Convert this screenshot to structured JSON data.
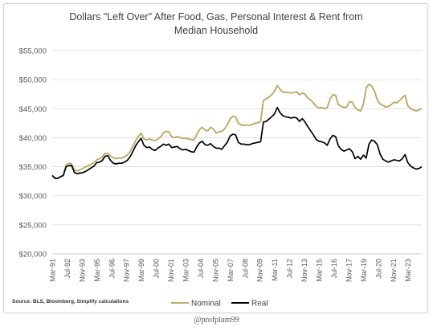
{
  "chart_data": {
    "type": "line",
    "title": [
      "Dollars \"Left Over\" After Food, Gas, Personal Interest & Rent from",
      "Median Household"
    ],
    "xlabel": "",
    "ylabel": "",
    "ylim": [
      20000,
      55000
    ],
    "yticks": [
      20000,
      25000,
      30000,
      35000,
      40000,
      45000,
      50000,
      55000
    ],
    "ytick_labels": [
      "$20,000",
      "$25,000",
      "$30,000",
      "$35,000",
      "$40,000",
      "$45,000",
      "$50,000",
      "$55,000"
    ],
    "x_range": [
      "1991-03",
      "2024-06"
    ],
    "xtick_labels": [
      "Mar-91",
      "Jul-92",
      "Nov-93",
      "Mar-95",
      "Jul-96",
      "Nov-97",
      "Mar-99",
      "Jul-00",
      "Nov-01",
      "Mar-03",
      "Jul-04",
      "Nov-05",
      "Mar-07",
      "Jul-08",
      "Nov-09",
      "Mar-11",
      "Jul-12",
      "Nov-13",
      "Mar-15",
      "Jul-16",
      "Nov-17",
      "Mar-19",
      "Jul-20",
      "Nov-21",
      "Mar-23"
    ],
    "grid": "horizontal",
    "legend": "bottom",
    "source": "Source: BLS, Bloomberg, Simplify calculations",
    "series": [
      {
        "name": "Nominal",
        "color": "#c2a866",
        "points": [
          [
            "1991-03",
            33500
          ],
          [
            "1991-06",
            33000
          ],
          [
            "1991-09",
            33000
          ],
          [
            "1991-12",
            33300
          ],
          [
            "1992-03",
            33500
          ],
          [
            "1992-06",
            35300
          ],
          [
            "1992-09",
            35600
          ],
          [
            "1992-12",
            35500
          ],
          [
            "1993-03",
            34400
          ],
          [
            "1993-06",
            34300
          ],
          [
            "1993-09",
            34500
          ],
          [
            "1993-12",
            34700
          ],
          [
            "1994-03",
            35000
          ],
          [
            "1994-06",
            35200
          ],
          [
            "1994-09",
            35400
          ],
          [
            "1994-12",
            35700
          ],
          [
            "1995-03",
            36200
          ],
          [
            "1995-06",
            36400
          ],
          [
            "1995-09",
            36700
          ],
          [
            "1995-12",
            37300
          ],
          [
            "1996-03",
            37300
          ],
          [
            "1996-06",
            36900
          ],
          [
            "1996-09",
            36500
          ],
          [
            "1996-12",
            36400
          ],
          [
            "1997-03",
            36500
          ],
          [
            "1997-06",
            36500
          ],
          [
            "1997-09",
            36700
          ],
          [
            "1997-12",
            37000
          ],
          [
            "1998-03",
            37600
          ],
          [
            "1998-06",
            38500
          ],
          [
            "1998-09",
            39500
          ],
          [
            "1998-12",
            40200
          ],
          [
            "1999-03",
            40800
          ],
          [
            "1999-06",
            39800
          ],
          [
            "1999-09",
            39600
          ],
          [
            "1999-12",
            39800
          ],
          [
            "2000-03",
            39600
          ],
          [
            "2000-06",
            39500
          ],
          [
            "2000-09",
            39800
          ],
          [
            "2000-12",
            40100
          ],
          [
            "2001-03",
            40800
          ],
          [
            "2001-06",
            41100
          ],
          [
            "2001-09",
            41000
          ],
          [
            "2001-12",
            40200
          ],
          [
            "2002-03",
            40000
          ],
          [
            "2002-06",
            40200
          ],
          [
            "2002-09",
            40000
          ],
          [
            "2002-12",
            39900
          ],
          [
            "2003-03",
            39900
          ],
          [
            "2003-06",
            39800
          ],
          [
            "2003-09",
            39700
          ],
          [
            "2003-12",
            39600
          ],
          [
            "2004-03",
            40500
          ],
          [
            "2004-06",
            41400
          ],
          [
            "2004-09",
            41800
          ],
          [
            "2004-12",
            41300
          ],
          [
            "2005-03",
            41200
          ],
          [
            "2005-06",
            41800
          ],
          [
            "2005-09",
            41500
          ],
          [
            "2005-12",
            40800
          ],
          [
            "2006-03",
            41000
          ],
          [
            "2006-06",
            41100
          ],
          [
            "2006-09",
            41500
          ],
          [
            "2006-12",
            42200
          ],
          [
            "2007-03",
            43200
          ],
          [
            "2007-06",
            43700
          ],
          [
            "2007-09",
            43600
          ],
          [
            "2007-12",
            42500
          ],
          [
            "2008-03",
            42200
          ],
          [
            "2008-06",
            42100
          ],
          [
            "2008-09",
            42200
          ],
          [
            "2008-12",
            42100
          ],
          [
            "2009-03",
            42300
          ],
          [
            "2009-06",
            42500
          ],
          [
            "2009-09",
            42600
          ],
          [
            "2009-12",
            42800
          ],
          [
            "2010-03",
            46400
          ],
          [
            "2010-06",
            46700
          ],
          [
            "2010-09",
            47000
          ],
          [
            "2010-12",
            47400
          ],
          [
            "2011-03",
            48000
          ],
          [
            "2011-06",
            49000
          ],
          [
            "2011-09",
            48300
          ],
          [
            "2011-12",
            47900
          ],
          [
            "2012-03",
            47800
          ],
          [
            "2012-06",
            47800
          ],
          [
            "2012-09",
            47700
          ],
          [
            "2012-12",
            47800
          ],
          [
            "2013-03",
            47900
          ],
          [
            "2013-06",
            47400
          ],
          [
            "2013-09",
            47700
          ],
          [
            "2013-12",
            47500
          ],
          [
            "2014-03",
            46800
          ],
          [
            "2014-06",
            46500
          ],
          [
            "2014-09",
            46000
          ],
          [
            "2014-12",
            45400
          ],
          [
            "2015-03",
            45100
          ],
          [
            "2015-06",
            45200
          ],
          [
            "2015-09",
            45000
          ],
          [
            "2015-12",
            45200
          ],
          [
            "2016-03",
            46700
          ],
          [
            "2016-06",
            47400
          ],
          [
            "2016-09",
            47300
          ],
          [
            "2016-12",
            45700
          ],
          [
            "2017-03",
            45400
          ],
          [
            "2017-06",
            45200
          ],
          [
            "2017-09",
            45300
          ],
          [
            "2017-12",
            46200
          ],
          [
            "2018-03",
            46100
          ],
          [
            "2018-06",
            45200
          ],
          [
            "2018-09",
            44800
          ],
          [
            "2018-12",
            44600
          ],
          [
            "2019-03",
            45800
          ],
          [
            "2019-06",
            48600
          ],
          [
            "2019-09",
            49200
          ],
          [
            "2019-12",
            48900
          ],
          [
            "2020-03",
            48000
          ],
          [
            "2020-06",
            46500
          ],
          [
            "2020-09",
            45800
          ],
          [
            "2020-12",
            45600
          ],
          [
            "2021-03",
            45300
          ],
          [
            "2021-06",
            45400
          ],
          [
            "2021-09",
            45700
          ],
          [
            "2021-12",
            46100
          ],
          [
            "2022-03",
            46000
          ],
          [
            "2022-06",
            46400
          ],
          [
            "2022-09",
            46900
          ],
          [
            "2022-12",
            47300
          ],
          [
            "2023-03",
            45500
          ],
          [
            "2023-06",
            45000
          ],
          [
            "2023-09",
            44800
          ],
          [
            "2023-12",
            44600
          ],
          [
            "2024-03",
            44800
          ],
          [
            "2024-06",
            45000
          ]
        ]
      },
      {
        "name": "Real",
        "color": "#000000",
        "points": [
          [
            "1991-03",
            33500
          ],
          [
            "1991-06",
            33000
          ],
          [
            "1991-09",
            33000
          ],
          [
            "1991-12",
            33300
          ],
          [
            "1992-03",
            33500
          ],
          [
            "1992-06",
            35000
          ],
          [
            "1992-09",
            35200
          ],
          [
            "1992-12",
            35200
          ],
          [
            "1993-03",
            34000
          ],
          [
            "1993-06",
            33800
          ],
          [
            "1993-09",
            33900
          ],
          [
            "1993-12",
            34000
          ],
          [
            "1994-03",
            34200
          ],
          [
            "1994-06",
            34500
          ],
          [
            "1994-09",
            34800
          ],
          [
            "1994-12",
            35100
          ],
          [
            "1995-03",
            35700
          ],
          [
            "1995-06",
            35800
          ],
          [
            "1995-09",
            36100
          ],
          [
            "1995-12",
            36800
          ],
          [
            "1996-03",
            36900
          ],
          [
            "1996-06",
            36100
          ],
          [
            "1996-09",
            35600
          ],
          [
            "1996-12",
            35500
          ],
          [
            "1997-03",
            35600
          ],
          [
            "1997-06",
            35600
          ],
          [
            "1997-09",
            35800
          ],
          [
            "1997-12",
            36100
          ],
          [
            "1998-03",
            36700
          ],
          [
            "1998-06",
            37600
          ],
          [
            "1998-09",
            38600
          ],
          [
            "1998-12",
            39300
          ],
          [
            "1999-03",
            39900
          ],
          [
            "1999-06",
            38700
          ],
          [
            "1999-09",
            38300
          ],
          [
            "1999-12",
            38400
          ],
          [
            "2000-03",
            38000
          ],
          [
            "2000-06",
            37800
          ],
          [
            "2000-09",
            38200
          ],
          [
            "2000-12",
            38500
          ],
          [
            "2001-03",
            38900
          ],
          [
            "2001-06",
            38700
          ],
          [
            "2001-09",
            38900
          ],
          [
            "2001-12",
            38300
          ],
          [
            "2002-03",
            38400
          ],
          [
            "2002-06",
            38500
          ],
          [
            "2002-09",
            38100
          ],
          [
            "2002-12",
            37900
          ],
          [
            "2003-03",
            38000
          ],
          [
            "2003-06",
            37800
          ],
          [
            "2003-09",
            37600
          ],
          [
            "2003-12",
            37500
          ],
          [
            "2004-03",
            38400
          ],
          [
            "2004-06",
            39100
          ],
          [
            "2004-09",
            39400
          ],
          [
            "2004-12",
            38800
          ],
          [
            "2005-03",
            38700
          ],
          [
            "2005-06",
            39000
          ],
          [
            "2005-09",
            38500
          ],
          [
            "2005-12",
            38200
          ],
          [
            "2006-03",
            38200
          ],
          [
            "2006-06",
            38000
          ],
          [
            "2006-09",
            38600
          ],
          [
            "2006-12",
            39200
          ],
          [
            "2007-03",
            40300
          ],
          [
            "2007-06",
            40600
          ],
          [
            "2007-09",
            40500
          ],
          [
            "2007-12",
            39200
          ],
          [
            "2008-03",
            38900
          ],
          [
            "2008-06",
            38900
          ],
          [
            "2008-09",
            38800
          ],
          [
            "2008-12",
            38800
          ],
          [
            "2009-03",
            39000
          ],
          [
            "2009-06",
            39100
          ],
          [
            "2009-09",
            39200
          ],
          [
            "2009-12",
            39300
          ],
          [
            "2010-03",
            42700
          ],
          [
            "2010-06",
            42800
          ],
          [
            "2010-09",
            43200
          ],
          [
            "2010-12",
            43600
          ],
          [
            "2011-03",
            44100
          ],
          [
            "2011-06",
            45200
          ],
          [
            "2011-09",
            44300
          ],
          [
            "2011-12",
            43800
          ],
          [
            "2012-03",
            43600
          ],
          [
            "2012-06",
            43500
          ],
          [
            "2012-09",
            43400
          ],
          [
            "2012-12",
            43500
          ],
          [
            "2013-03",
            43400
          ],
          [
            "2013-06",
            42800
          ],
          [
            "2013-09",
            43300
          ],
          [
            "2013-12",
            42700
          ],
          [
            "2014-03",
            41900
          ],
          [
            "2014-06",
            41200
          ],
          [
            "2014-09",
            40500
          ],
          [
            "2014-12",
            39700
          ],
          [
            "2015-03",
            39400
          ],
          [
            "2015-06",
            39300
          ],
          [
            "2015-09",
            39100
          ],
          [
            "2015-12",
            38700
          ],
          [
            "2016-03",
            39800
          ],
          [
            "2016-06",
            40400
          ],
          [
            "2016-09",
            40200
          ],
          [
            "2016-12",
            38600
          ],
          [
            "2017-03",
            38000
          ],
          [
            "2017-06",
            37700
          ],
          [
            "2017-09",
            37900
          ],
          [
            "2017-12",
            38100
          ],
          [
            "2018-03",
            37600
          ],
          [
            "2018-06",
            36400
          ],
          [
            "2018-09",
            36800
          ],
          [
            "2018-12",
            36300
          ],
          [
            "2019-03",
            37000
          ],
          [
            "2019-06",
            36500
          ],
          [
            "2019-09",
            38900
          ],
          [
            "2019-12",
            39600
          ],
          [
            "2020-03",
            39400
          ],
          [
            "2020-06",
            38800
          ],
          [
            "2020-09",
            37200
          ],
          [
            "2020-12",
            36300
          ],
          [
            "2021-03",
            36000
          ],
          [
            "2021-06",
            35800
          ],
          [
            "2021-09",
            36000
          ],
          [
            "2021-12",
            36200
          ],
          [
            "2022-03",
            36100
          ],
          [
            "2022-06",
            36000
          ],
          [
            "2022-09",
            36400
          ],
          [
            "2022-12",
            37100
          ],
          [
            "2023-03",
            35700
          ],
          [
            "2023-06",
            35100
          ],
          [
            "2023-09",
            34800
          ],
          [
            "2023-12",
            34600
          ],
          [
            "2024-03",
            34700
          ],
          [
            "2024-06",
            35000
          ]
        ]
      }
    ]
  },
  "credit": "@profplum99"
}
